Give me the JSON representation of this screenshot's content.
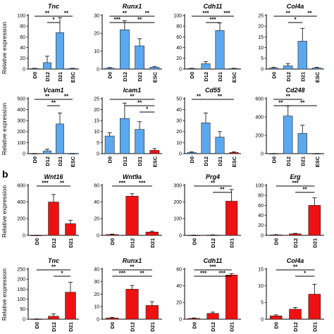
{
  "panel_labels": [
    "b"
  ],
  "ylabel": "Relative expression",
  "colors": {
    "blue": "#5aa8f0",
    "red": "#ee1111",
    "error": "#000000"
  },
  "chart_data": [
    {
      "type": "bar",
      "title": "Tnc",
      "categories": [
        "D0",
        "D12",
        "D21",
        "ESC"
      ],
      "values": [
        1,
        12,
        68,
        1
      ],
      "errors": [
        0.5,
        12,
        28,
        0.5
      ],
      "ylim": [
        0,
        100
      ],
      "yticks": [
        0,
        20,
        40,
        60,
        80,
        100
      ],
      "color": "blue",
      "significance": [
        {
          "from": 0,
          "to": 2,
          "label": "**"
        },
        {
          "from": 1,
          "to": 2,
          "label": "*"
        },
        {
          "from": 2,
          "to": 3,
          "label": "**"
        }
      ]
    },
    {
      "type": "bar",
      "title": "Runx1",
      "categories": [
        "D0",
        "D12",
        "D21",
        "ESC"
      ],
      "values": [
        0.5,
        22,
        13,
        1
      ],
      "errors": [
        0.3,
        5,
        4,
        0.5
      ],
      "ylim": [
        0,
        30
      ],
      "yticks": [
        0,
        10,
        20,
        30
      ],
      "color": "blue",
      "significance": [
        {
          "from": 0,
          "to": 2,
          "label": "**"
        },
        {
          "from": 0,
          "to": 1,
          "label": "***"
        },
        {
          "from": 1,
          "to": 3,
          "label": "**"
        },
        {
          "from": 2,
          "to": 3,
          "label": "**"
        }
      ]
    },
    {
      "type": "bar",
      "title": "Cdh11",
      "categories": [
        "D0",
        "D12",
        "D21",
        "ESC"
      ],
      "values": [
        1,
        10,
        72,
        1
      ],
      "errors": [
        0.5,
        4,
        14,
        0.5
      ],
      "ylim": [
        0,
        100
      ],
      "yticks": [
        0,
        20,
        40,
        60,
        80,
        100
      ],
      "color": "blue",
      "significance": [
        {
          "from": 0,
          "to": 2,
          "label": "***"
        },
        {
          "from": 1,
          "to": 2,
          "label": "***"
        },
        {
          "from": 2,
          "to": 3,
          "label": "***"
        }
      ]
    },
    {
      "type": "bar",
      "title": "Col4a",
      "categories": [
        "D0",
        "D12",
        "D21",
        "ESC"
      ],
      "values": [
        0.5,
        1.5,
        13,
        0.5
      ],
      "errors": [
        0.3,
        1,
        6,
        0.3
      ],
      "ylim": [
        0,
        25
      ],
      "yticks": [
        0,
        5,
        10,
        15,
        20,
        25
      ],
      "color": "blue",
      "significance": [
        {
          "from": 0,
          "to": 2,
          "label": "**"
        },
        {
          "from": 1,
          "to": 2,
          "label": "*"
        },
        {
          "from": 2,
          "to": 3,
          "label": "**"
        }
      ]
    },
    {
      "type": "bar",
      "title": "Vcam1",
      "categories": [
        "D0",
        "D12",
        "D21",
        "ESC"
      ],
      "values": [
        1,
        25,
        270,
        1
      ],
      "errors": [
        0.5,
        15,
        100,
        0.5
      ],
      "ylim": [
        0,
        500
      ],
      "yticks": [
        0,
        100,
        200,
        300,
        400,
        500
      ],
      "color": "blue",
      "significance": [
        {
          "from": 0,
          "to": 2,
          "label": "**"
        },
        {
          "from": 1,
          "to": 2,
          "label": "**"
        },
        {
          "from": 2,
          "to": 3,
          "label": "**"
        }
      ]
    },
    {
      "type": "bar",
      "title": "Icam1",
      "categories": [
        "D0",
        "D12",
        "D21",
        "ESC"
      ],
      "values": [
        8,
        16,
        11,
        1.5
      ],
      "errors": [
        1.5,
        7,
        3.5,
        0.8
      ],
      "ylim": [
        0,
        25
      ],
      "yticks": [
        0,
        5,
        10,
        15,
        20,
        25
      ],
      "color": "blue",
      "color_last": "red",
      "significance": [
        {
          "from": 0,
          "to": 3,
          "label": "**"
        },
        {
          "from": 1,
          "to": 3,
          "label": "**"
        },
        {
          "from": 2,
          "to": 3,
          "label": "*"
        }
      ]
    },
    {
      "type": "bar",
      "title": "Cd55",
      "categories": [
        "D0",
        "D12",
        "D21",
        "ESC"
      ],
      "values": [
        1,
        28,
        15,
        1
      ],
      "errors": [
        0.5,
        9,
        5,
        0.5
      ],
      "ylim": [
        0,
        50
      ],
      "yticks": [
        0,
        10,
        20,
        30,
        40,
        50
      ],
      "color": "blue",
      "color_last": "red",
      "significance": [
        {
          "from": 0,
          "to": 1,
          "label": "**"
        },
        {
          "from": 1,
          "to": 3,
          "label": "**"
        }
      ]
    },
    {
      "type": "bar",
      "title": "Cd248",
      "categories": [
        "D0",
        "D12",
        "D21",
        "ESC"
      ],
      "values": [
        1,
        410,
        220,
        1
      ],
      "errors": [
        0.5,
        110,
        90,
        0.5
      ],
      "ylim": [
        0,
        600
      ],
      "yticks": [
        0,
        200,
        400,
        600
      ],
      "color": "blue",
      "significance": [
        {
          "from": 0,
          "to": 2,
          "label": "**"
        },
        {
          "from": 0,
          "to": 1,
          "label": "**"
        },
        {
          "from": 1,
          "to": 3,
          "label": "**"
        }
      ]
    },
    {
      "type": "bar",
      "title": "Wnt16",
      "categories": [
        "D0",
        "D12",
        "D21"
      ],
      "values": [
        1,
        400,
        140
      ],
      "errors": [
        0.5,
        90,
        40
      ],
      "ylim": [
        0,
        600
      ],
      "yticks": [
        0,
        200,
        400,
        600
      ],
      "color": "red",
      "significance": [
        {
          "from": 0,
          "to": 1,
          "label": "***"
        },
        {
          "from": 1,
          "to": 2,
          "label": "**"
        }
      ]
    },
    {
      "type": "bar",
      "title": "Wnt9a",
      "categories": [
        "D0",
        "D12",
        "D21"
      ],
      "values": [
        1,
        47,
        4
      ],
      "errors": [
        0.5,
        3,
        1
      ],
      "ylim": [
        0,
        60
      ],
      "yticks": [
        0,
        20,
        40,
        60
      ],
      "color": "red",
      "significance": [
        {
          "from": 0,
          "to": 1,
          "label": "***"
        },
        {
          "from": 1,
          "to": 2,
          "label": "***"
        }
      ]
    },
    {
      "type": "bar",
      "title": "Prg4",
      "categories": [
        "D0",
        "D12",
        "D21"
      ],
      "values": [
        1,
        2,
        205
      ],
      "errors": [
        0.5,
        1,
        70
      ],
      "ylim": [
        0,
        300
      ],
      "yticks": [
        0,
        100,
        200,
        300
      ],
      "color": "red",
      "significance": [
        {
          "from": 0,
          "to": 2,
          "label": "**"
        },
        {
          "from": 1,
          "to": 2,
          "label": "**"
        }
      ]
    },
    {
      "type": "bar",
      "title": "Erg",
      "categories": [
        "D0",
        "D12",
        "D21"
      ],
      "values": [
        1,
        3,
        60
      ],
      "errors": [
        0.5,
        1,
        15
      ],
      "ylim": [
        0,
        100
      ],
      "yticks": [
        0,
        20,
        40,
        60,
        80,
        100
      ],
      "color": "red",
      "significance": [
        {
          "from": 0,
          "to": 2,
          "label": "***"
        },
        {
          "from": 1,
          "to": 2,
          "label": "**"
        }
      ]
    },
    {
      "type": "bar",
      "title": "Tnc",
      "categories": [
        "D0",
        "D12",
        "D21"
      ],
      "values": [
        1,
        15,
        135
      ],
      "errors": [
        0.5,
        12,
        50
      ],
      "ylim": [
        0,
        250
      ],
      "yticks": [
        0,
        50,
        100,
        150,
        200,
        250
      ],
      "color": "red",
      "significance": [
        {
          "from": 0,
          "to": 2,
          "label": "**"
        },
        {
          "from": 1,
          "to": 2,
          "label": "*"
        }
      ]
    },
    {
      "type": "bar",
      "title": "Runx1",
      "categories": [
        "D0",
        "D12",
        "D21"
      ],
      "values": [
        1,
        24,
        11
      ],
      "errors": [
        0.5,
        3,
        3
      ],
      "ylim": [
        0,
        40
      ],
      "yticks": [
        0,
        10,
        20,
        30,
        40
      ],
      "color": "red",
      "significance": [
        {
          "from": 0,
          "to": 2,
          "label": "**"
        },
        {
          "from": 0,
          "to": 1,
          "label": "***"
        },
        {
          "from": 1,
          "to": 2,
          "label": "**"
        }
      ]
    },
    {
      "type": "bar",
      "title": "Cdh11",
      "categories": [
        "D0",
        "D12",
        "D21"
      ],
      "values": [
        1,
        7,
        53
      ],
      "errors": [
        0.5,
        1.5,
        1.5
      ],
      "ylim": [
        0,
        60
      ],
      "yticks": [
        0,
        20,
        40,
        60
      ],
      "color": "red",
      "significance": [
        {
          "from": 0,
          "to": 2,
          "label": "***"
        },
        {
          "from": 0,
          "to": 1,
          "label": "***"
        },
        {
          "from": 1,
          "to": 2,
          "label": "***"
        }
      ]
    },
    {
      "type": "bar",
      "title": "Col4a",
      "categories": [
        "D0",
        "D12",
        "D21"
      ],
      "values": [
        1,
        3,
        7.5
      ],
      "errors": [
        0.3,
        0.5,
        3
      ],
      "ylim": [
        0,
        15
      ],
      "yticks": [
        0,
        5,
        10,
        15
      ],
      "color": "red",
      "significance": [
        {
          "from": 0,
          "to": 2,
          "label": "**"
        },
        {
          "from": 1,
          "to": 2,
          "label": "*"
        }
      ]
    }
  ]
}
